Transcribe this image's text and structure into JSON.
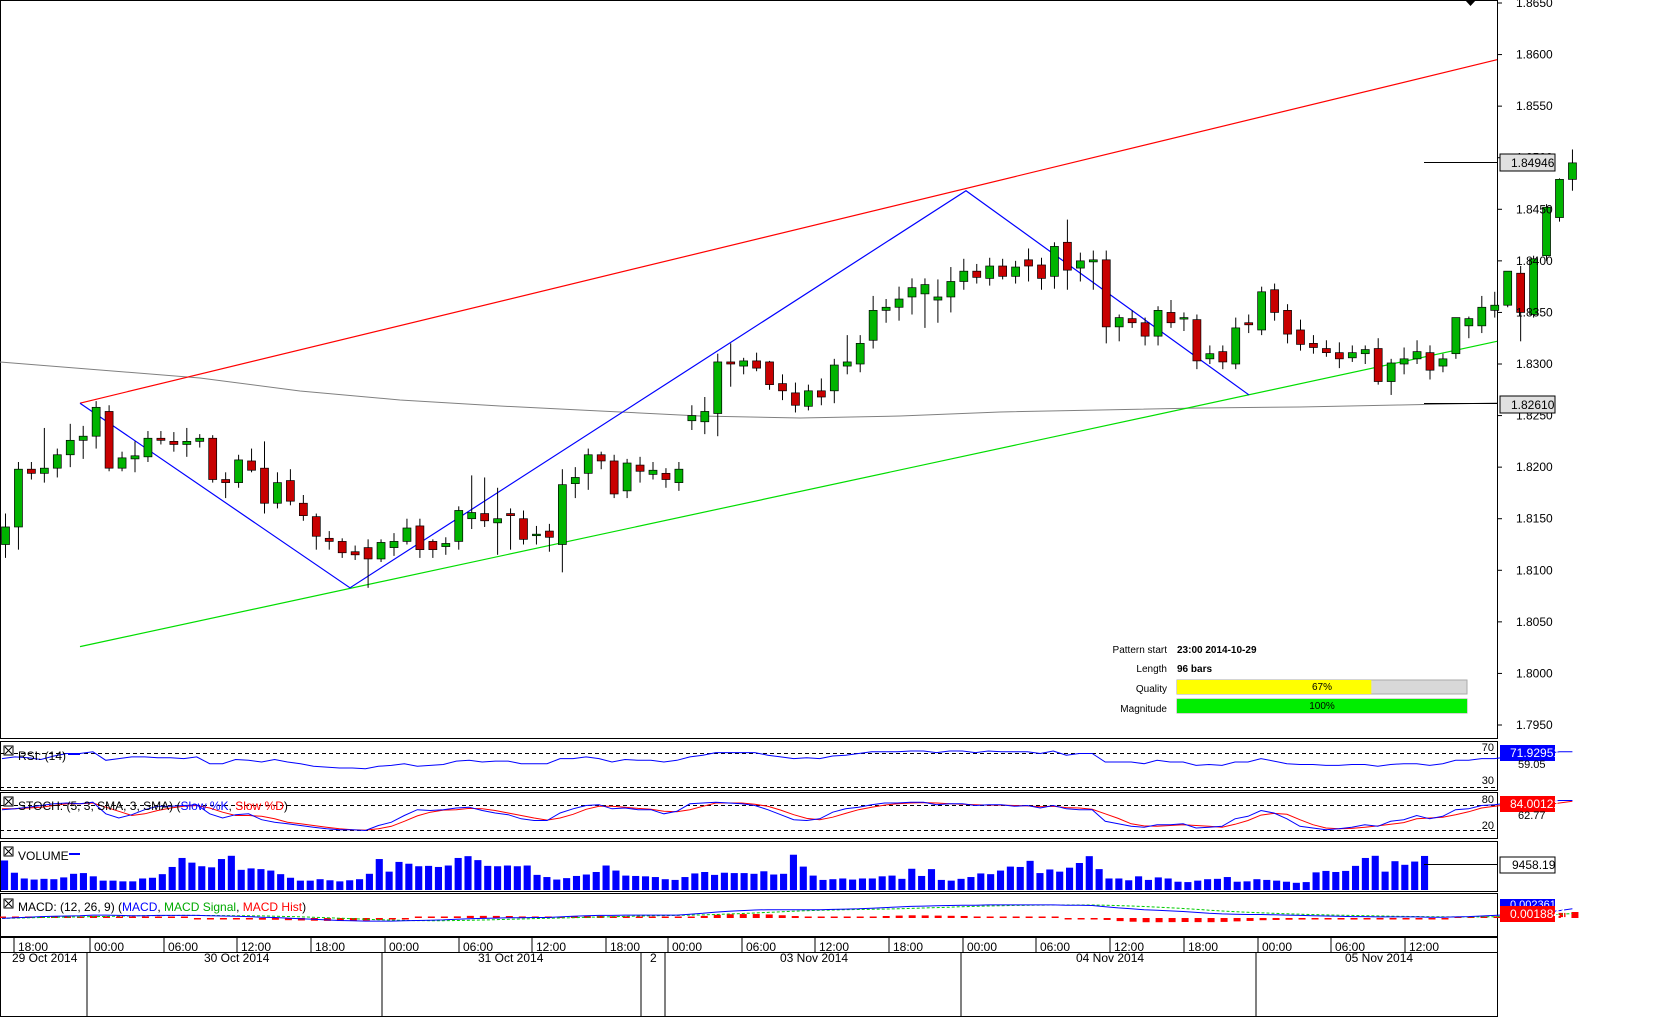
{
  "price_axis": {
    "ticks": [
      "1.8650",
      "1.8600",
      "1.8550",
      "1.8500",
      "1.8450",
      "1.8400",
      "1.8350",
      "1.8300",
      "1.8250",
      "1.8200",
      "1.8150",
      "1.8100",
      "1.8050",
      "1.8000",
      "1.7950"
    ],
    "current_price_label": "1.84946",
    "ma_price_label": "1.82610"
  },
  "pattern_info": {
    "pattern_start_label": "Pattern start",
    "pattern_start_value": "23:00 2014-10-29",
    "length_label": "Length",
    "length_value": "96 bars",
    "quality_label": "Quality",
    "quality_value": "67%",
    "quality_fraction": 0.67,
    "magnitude_label": "Magnitude",
    "magnitude_value": "100%",
    "magnitude_fraction": 1.0
  },
  "rsi": {
    "title": "RSI: (14)",
    "level_high": "70",
    "level_low": "30",
    "value_label": "71.92951",
    "secondary_label": "59.05"
  },
  "stoch": {
    "title_prefix": "STOCH: (5, 3, SMA, 3, SMA) (",
    "k_name": "Slow %K",
    "separator": ", ",
    "d_name": "Slow %D",
    "title_suffix": ")",
    "level_high": "80",
    "level_low": "20",
    "value_label": "84.00121",
    "secondary_label": "62.77"
  },
  "volume": {
    "title": "VOLUME",
    "value_label": "9458.19"
  },
  "macd": {
    "title_prefix": "MACD: (12, 26, 9) (",
    "macd_name": "MACD",
    "separator1": ", ",
    "signal_name": "MACD Signal",
    "separator2": ", ",
    "hist_name": "MACD Hist",
    "title_suffix": ")",
    "value_label_top": "0.0023613",
    "value_label": "0.0018841"
  },
  "time_axis": {
    "hour_labels": [
      "18:00",
      "00:00",
      "06:00",
      "12:00",
      "18:00",
      "00:00",
      "06:00",
      "12:00",
      "18:00",
      "00:00",
      "06:00",
      "12:00",
      "18:00",
      "00:00",
      "06:00",
      "12:00",
      "18:00",
      "00:00",
      "06:00",
      "12:00"
    ],
    "date_labels": [
      "29 Oct 2014",
      "30 Oct 2014",
      "31 Oct 2014",
      "2",
      "03 Nov 2014",
      "04 Nov 2014",
      "05 Nov 2014"
    ]
  },
  "colors": {
    "bull": "#00b400",
    "bear": "#c80000",
    "resistance": "#ff0000",
    "support": "#00dd00",
    "zigzag": "#0000ff",
    "ma": "#808080",
    "quality_bar": "#ffff00",
    "magnitude_bar": "#00ee00"
  },
  "chart_data": {
    "type": "candlestick",
    "pattern": "ascending channel",
    "ylim": [
      1.7925,
      1.8655
    ],
    "candles": [
      [
        1.8125,
        1.8155,
        1.8112,
        1.8142
      ],
      [
        1.8142,
        1.8205,
        1.812,
        1.8198
      ],
      [
        1.8198,
        1.8205,
        1.8188,
        1.8194
      ],
      [
        1.8194,
        1.8238,
        1.8185,
        1.8199
      ],
      [
        1.8199,
        1.8218,
        1.819,
        1.8212
      ],
      [
        1.8212,
        1.8242,
        1.82,
        1.8226
      ],
      [
        1.8226,
        1.824,
        1.8208,
        1.823
      ],
      [
        1.823,
        1.8264,
        1.8218,
        1.8258
      ],
      [
        1.8254,
        1.826,
        1.8196,
        1.8199
      ],
      [
        1.8199,
        1.8215,
        1.8196,
        1.8209
      ],
      [
        1.8208,
        1.8225,
        1.8195,
        1.8211
      ],
      [
        1.821,
        1.8235,
        1.8205,
        1.8228
      ],
      [
        1.8228,
        1.8235,
        1.8222,
        1.8226
      ],
      [
        1.8225,
        1.8234,
        1.8215,
        1.8222
      ],
      [
        1.8222,
        1.8238,
        1.821,
        1.8225
      ],
      [
        1.8225,
        1.8232,
        1.8219,
        1.8228
      ],
      [
        1.8228,
        1.8231,
        1.8185,
        1.8188
      ],
      [
        1.8188,
        1.8195,
        1.817,
        1.8185
      ],
      [
        1.8185,
        1.8212,
        1.818,
        1.8207
      ],
      [
        1.8206,
        1.8218,
        1.8195,
        1.8197
      ],
      [
        1.8199,
        1.8225,
        1.8155,
        1.8165
      ],
      [
        1.8165,
        1.8195,
        1.816,
        1.8185
      ],
      [
        1.8187,
        1.8198,
        1.8163,
        1.8167
      ],
      [
        1.8165,
        1.8173,
        1.8148,
        1.8153
      ],
      [
        1.8152,
        1.8155,
        1.812,
        1.8133
      ],
      [
        1.8131,
        1.8138,
        1.812,
        1.8128
      ],
      [
        1.8128,
        1.8131,
        1.8112,
        1.8117
      ],
      [
        1.8118,
        1.8124,
        1.811,
        1.8115
      ],
      [
        1.8122,
        1.813,
        1.8083,
        1.8111
      ],
      [
        1.8111,
        1.813,
        1.8108,
        1.8127
      ],
      [
        1.8122,
        1.8136,
        1.8114,
        1.8128
      ],
      [
        1.8128,
        1.815,
        1.8125,
        1.8141
      ],
      [
        1.8143,
        1.815,
        1.8112,
        1.812
      ],
      [
        1.8128,
        1.813,
        1.8112,
        1.812
      ],
      [
        1.8123,
        1.8132,
        1.8115,
        1.8126
      ],
      [
        1.8128,
        1.8162,
        1.812,
        1.8158
      ],
      [
        1.815,
        1.8192,
        1.814,
        1.8156
      ],
      [
        1.8155,
        1.819,
        1.8142,
        1.8148
      ],
      [
        1.8146,
        1.818,
        1.8115,
        1.815
      ],
      [
        1.8155,
        1.816,
        1.812,
        1.8153
      ],
      [
        1.815,
        1.8158,
        1.8125,
        1.813
      ],
      [
        1.8135,
        1.8143,
        1.8125,
        1.8135
      ],
      [
        1.8138,
        1.8145,
        1.8118,
        1.8132
      ],
      [
        1.8125,
        1.8198,
        1.8098,
        1.8183
      ],
      [
        1.8184,
        1.82,
        1.817,
        1.819
      ],
      [
        1.8194,
        1.8218,
        1.8178,
        1.8212
      ],
      [
        1.8212,
        1.8215,
        1.8198,
        1.8206
      ],
      [
        1.8206,
        1.8212,
        1.817,
        1.8174
      ],
      [
        1.8177,
        1.8208,
        1.817,
        1.8204
      ],
      [
        1.8202,
        1.821,
        1.8185,
        1.8196
      ],
      [
        1.8193,
        1.8205,
        1.8188,
        1.8197
      ],
      [
        1.8194,
        1.8199,
        1.818,
        1.8188
      ],
      [
        1.8185,
        1.8205,
        1.8177,
        1.8198
      ],
      [
        1.8245,
        1.826,
        1.8236,
        1.825
      ],
      [
        1.8244,
        1.8268,
        1.8232,
        1.8254
      ],
      [
        1.8252,
        1.831,
        1.823,
        1.8302
      ],
      [
        1.8302,
        1.832,
        1.8278,
        1.83
      ],
      [
        1.8298,
        1.8306,
        1.829,
        1.8303
      ],
      [
        1.8303,
        1.8311,
        1.8293,
        1.8296
      ],
      [
        1.8302,
        1.8303,
        1.8275,
        1.828
      ],
      [
        1.8281,
        1.829,
        1.8265,
        1.8274
      ],
      [
        1.8272,
        1.8282,
        1.8253,
        1.826
      ],
      [
        1.8259,
        1.828,
        1.8255,
        1.8274
      ],
      [
        1.8274,
        1.8286,
        1.826,
        1.8268
      ],
      [
        1.8274,
        1.8305,
        1.8262,
        1.8299
      ],
      [
        1.8298,
        1.8328,
        1.829,
        1.8302
      ],
      [
        1.83,
        1.8328,
        1.8292,
        1.832
      ],
      [
        1.8323,
        1.8366,
        1.8315,
        1.8352
      ],
      [
        1.8352,
        1.8363,
        1.834,
        1.8355
      ],
      [
        1.8355,
        1.8375,
        1.8342,
        1.8363
      ],
      [
        1.8365,
        1.8383,
        1.8348,
        1.8374
      ],
      [
        1.8368,
        1.8383,
        1.8335,
        1.8377
      ],
      [
        1.8362,
        1.8382,
        1.834,
        1.8365
      ],
      [
        1.8365,
        1.8394,
        1.835,
        1.838
      ],
      [
        1.838,
        1.8402,
        1.8372,
        1.839
      ],
      [
        1.839,
        1.8397,
        1.8378,
        1.8384
      ],
      [
        1.8383,
        1.8403,
        1.8376,
        1.8395
      ],
      [
        1.8395,
        1.8402,
        1.8382,
        1.8385
      ],
      [
        1.8385,
        1.84,
        1.8378,
        1.8394
      ],
      [
        1.8401,
        1.8412,
        1.838,
        1.8395
      ],
      [
        1.8396,
        1.8403,
        1.8372,
        1.8383
      ],
      [
        1.8385,
        1.8418,
        1.8373,
        1.8414
      ],
      [
        1.8418,
        1.844,
        1.8372,
        1.8391
      ],
      [
        1.8393,
        1.8408,
        1.838,
        1.84
      ],
      [
        1.8399,
        1.841,
        1.8372,
        1.8401
      ],
      [
        1.8401,
        1.841,
        1.832,
        1.8336
      ],
      [
        1.8336,
        1.8348,
        1.8322,
        1.8345
      ],
      [
        1.8344,
        1.8352,
        1.8335,
        1.834
      ],
      [
        1.834,
        1.8345,
        1.8318,
        1.8327
      ],
      [
        1.8327,
        1.8356,
        1.8318,
        1.8352
      ],
      [
        1.835,
        1.8362,
        1.8335,
        1.834
      ],
      [
        1.8345,
        1.835,
        1.8332,
        1.8345
      ],
      [
        1.8343,
        1.8348,
        1.8295,
        1.8303
      ],
      [
        1.8305,
        1.8318,
        1.83,
        1.831
      ],
      [
        1.8312,
        1.8318,
        1.8295,
        1.8302
      ],
      [
        1.83,
        1.8345,
        1.8295,
        1.8335
      ],
      [
        1.834,
        1.8348,
        1.833,
        1.8338
      ],
      [
        1.8333,
        1.8375,
        1.8328,
        1.837
      ],
      [
        1.8372,
        1.8378,
        1.8342,
        1.835
      ],
      [
        1.8352,
        1.8358,
        1.832,
        1.8329
      ],
      [
        1.8333,
        1.8343,
        1.8313,
        1.8319
      ],
      [
        1.832,
        1.8328,
        1.831,
        1.8316
      ],
      [
        1.8315,
        1.8323,
        1.8307,
        1.8311
      ],
      [
        1.8311,
        1.8321,
        1.8296,
        1.8305
      ],
      [
        1.8306,
        1.8318,
        1.8302,
        1.8311
      ],
      [
        1.831,
        1.8318,
        1.83,
        1.8314
      ],
      [
        1.8315,
        1.8325,
        1.828,
        1.8283
      ],
      [
        1.8283,
        1.8305,
        1.827,
        1.8301
      ],
      [
        1.83,
        1.8316,
        1.829,
        1.8305
      ],
      [
        1.8305,
        1.8323,
        1.83,
        1.8312
      ],
      [
        1.8311,
        1.8318,
        1.8285,
        1.8294
      ],
      [
        1.8298,
        1.831,
        1.8292,
        1.8305
      ],
      [
        1.831,
        1.8345,
        1.8305,
        1.8345
      ],
      [
        1.8337,
        1.8346,
        1.8325,
        1.8344
      ],
      [
        1.8337,
        1.8366,
        1.833,
        1.8355
      ],
      [
        1.8352,
        1.837,
        1.8345,
        1.8357
      ],
      [
        1.8357,
        1.839,
        1.8355,
        1.839
      ],
      [
        1.8388,
        1.8395,
        1.8322,
        1.835
      ],
      [
        1.8348,
        1.8405,
        1.8345,
        1.8402
      ],
      [
        1.8405,
        1.8455,
        1.84,
        1.8452
      ],
      [
        1.8442,
        1.848,
        1.8438,
        1.8479
      ],
      [
        1.8479,
        1.8508,
        1.8468,
        1.8495
      ]
    ],
    "moving_average": {
      "value_end": 1.8261
    },
    "resistance_line": [
      [
        1.8262,
        1.8595
      ]
    ],
    "support_line": [
      [
        1.8026,
        1.8322
      ]
    ],
    "zigzag": [
      1.8262,
      1.8083,
      1.8468,
      1.827
    ],
    "rsi_series": [
      64,
      66,
      65,
      63,
      67,
      70,
      70,
      72,
      62,
      64,
      66,
      66,
      65,
      65,
      64,
      66,
      58,
      58,
      63,
      62,
      60,
      63,
      60,
      58,
      55,
      54,
      53,
      53,
      52,
      55,
      56,
      58,
      55,
      56,
      57,
      61,
      62,
      60,
      61,
      61,
      58,
      58,
      58,
      64,
      64,
      66,
      64,
      60,
      63,
      62,
      62,
      60,
      62,
      66,
      68,
      71,
      71,
      71,
      71,
      68,
      66,
      64,
      65,
      64,
      67,
      68,
      70,
      72,
      72,
      72,
      73,
      73,
      71,
      73,
      73,
      71,
      73,
      72,
      72,
      72,
      70,
      73,
      68,
      70,
      70,
      60,
      60,
      60,
      58,
      62,
      60,
      60,
      56,
      57,
      56,
      60,
      60,
      64,
      61,
      58,
      57,
      57,
      56,
      56,
      57,
      57,
      55,
      57,
      58,
      58,
      56,
      58,
      62,
      62,
      64,
      64,
      66,
      62,
      66,
      70,
      72,
      72
    ],
    "stoch_k_series": [
      70,
      72,
      76,
      80,
      84,
      86,
      84,
      88,
      60,
      50,
      58,
      70,
      78,
      78,
      80,
      82,
      60,
      50,
      58,
      60,
      46,
      40,
      36,
      32,
      28,
      24,
      22,
      22,
      20,
      32,
      40,
      56,
      70,
      68,
      70,
      74,
      76,
      68,
      62,
      58,
      48,
      44,
      44,
      62,
      72,
      80,
      82,
      72,
      74,
      70,
      70,
      60,
      66,
      84,
      86,
      88,
      86,
      84,
      80,
      70,
      58,
      46,
      44,
      48,
      64,
      72,
      76,
      82,
      86,
      86,
      88,
      88,
      82,
      84,
      84,
      80,
      82,
      82,
      78,
      80,
      74,
      80,
      72,
      70,
      70,
      42,
      36,
      30,
      28,
      34,
      34,
      36,
      26,
      28,
      30,
      48,
      54,
      68,
      62,
      48,
      30,
      26,
      22,
      24,
      28,
      34,
      30,
      42,
      46,
      56,
      48,
      54,
      70,
      72,
      80,
      82,
      86,
      72,
      84,
      90,
      92,
      92
    ],
    "stoch_d_series": [
      72,
      72,
      74,
      76,
      80,
      84,
      84,
      86,
      76,
      66,
      56,
      60,
      68,
      74,
      78,
      80,
      74,
      64,
      56,
      56,
      54,
      48,
      40,
      36,
      32,
      28,
      24,
      22,
      21,
      24,
      30,
      42,
      55,
      64,
      69,
      70,
      73,
      72,
      68,
      62,
      56,
      50,
      45,
      50,
      59,
      71,
      78,
      78,
      76,
      73,
      71,
      66,
      65,
      70,
      78,
      86,
      86,
      86,
      83,
      78,
      69,
      58,
      49,
      46,
      52,
      61,
      70,
      76,
      81,
      84,
      86,
      87,
      86,
      84,
      83,
      82,
      81,
      81,
      80,
      79,
      77,
      78,
      75,
      74,
      71,
      60,
      49,
      36,
      31,
      30,
      32,
      34,
      32,
      30,
      28,
      35,
      44,
      57,
      61,
      59,
      46,
      34,
      26,
      24,
      25,
      28,
      31,
      35,
      39,
      48,
      50,
      52,
      58,
      65,
      74,
      78,
      82,
      80,
      80,
      82,
      86,
      90
    ],
    "volume_series": [
      8200,
      4800,
      3200,
      2900,
      3100,
      3000,
      3500,
      4500,
      4700,
      3800,
      2600,
      2600,
      2400,
      2400,
      3200,
      3400,
      4400,
      6400,
      8900,
      7600,
      6600,
      6300,
      8600,
      9500,
      5600,
      6000,
      5800,
      5400,
      4400,
      3400,
      2600,
      2600,
      3000,
      2700,
      2400,
      2700,
      3000,
      4500,
      8600,
      5100,
      7800,
      7300,
      6600,
      6700,
      6400,
      6800,
      8900,
      9400,
      8300,
      6700,
      6600,
      6800,
      6600,
      6800,
      4200,
      3600,
      2900,
      3300,
      3900,
      4300,
      5000,
      6800,
      5400,
      4000,
      3900,
      3800,
      3600,
      3000,
      2800,
      3600,
      4600,
      5000,
      4200,
      4800,
      4700,
      4700,
      4500,
      5200,
      4300,
      4500,
      9800,
      6500,
      4000,
      2800,
      3000,
      3200,
      2900,
      3200,
      3200,
      3800,
      4000,
      3100,
      5900,
      3900,
      5800,
      2800,
      2600,
      3100,
      3600,
      4600,
      4400,
      5400,
      6500,
      6400,
      8100,
      4700,
      5700,
      5100,
      6200,
      7500,
      9400,
      5800,
      3200,
      3200,
      2700,
      3800,
      2800,
      3500,
      3200,
      2300,
      2200,
      2600,
      3000,
      3100,
      3600,
      2300,
      2400,
      3000,
      2800,
      2600,
      2300,
      2000,
      2200,
      4900,
      5300,
      5000,
      5300,
      6700,
      8900,
      9500,
      5100,
      8000,
      7000,
      7900,
      9458
    ],
    "macd_series": [
      -0.0008,
      -0.0006,
      -0.0004,
      -0.0002,
      -0.0001,
      0.0,
      0.0001,
      0.0003,
      0.0003,
      0.0002,
      0.0001,
      0.0001,
      0.0002,
      0.0002,
      0.0002,
      0.0002,
      0.0001,
      0.0,
      -0.0001,
      -0.0002,
      -0.0004,
      -0.0005,
      -0.0007,
      -0.0009,
      -0.0011,
      -0.0013,
      -0.0015,
      -0.0016,
      -0.0017,
      -0.0017,
      -0.0017,
      -0.0016,
      -0.0015,
      -0.0014,
      -0.0013,
      -0.0011,
      -0.0009,
      -0.0008,
      -0.0007,
      -0.0006,
      -0.0006,
      -0.0005,
      -0.0005,
      -0.0003,
      -0.0001,
      0.0001,
      0.0002,
      0.0002,
      0.0003,
      0.0003,
      0.0003,
      0.0003,
      0.0003,
      0.0006,
      0.0009,
      0.0013,
      0.0016,
      0.0018,
      0.002,
      0.0021,
      0.0021,
      0.0021,
      0.0021,
      0.0021,
      0.0022,
      0.0023,
      0.0024,
      0.0026,
      0.0028,
      0.003,
      0.0032,
      0.0033,
      0.0034,
      0.0035,
      0.0036,
      0.0036,
      0.0037,
      0.0037,
      0.0037,
      0.0037,
      0.0037,
      0.0037,
      0.0036,
      0.0036,
      0.0035,
      0.0031,
      0.0027,
      0.0024,
      0.0021,
      0.0019,
      0.0017,
      0.0015,
      0.0012,
      0.0009,
      0.0007,
      0.0006,
      0.0005,
      0.0005,
      0.0004,
      0.0003,
      0.0002,
      0.0001,
      0.0,
      -0.0001,
      -0.0002,
      -0.0002,
      -0.0003,
      -0.0003,
      -0.0003,
      -0.0003,
      -0.0004,
      -0.0004,
      -0.0003,
      -0.0002,
      0.0,
      0.0002,
      0.0004,
      0.0006,
      0.0009,
      0.0013,
      0.0018,
      0.0024
    ]
  }
}
